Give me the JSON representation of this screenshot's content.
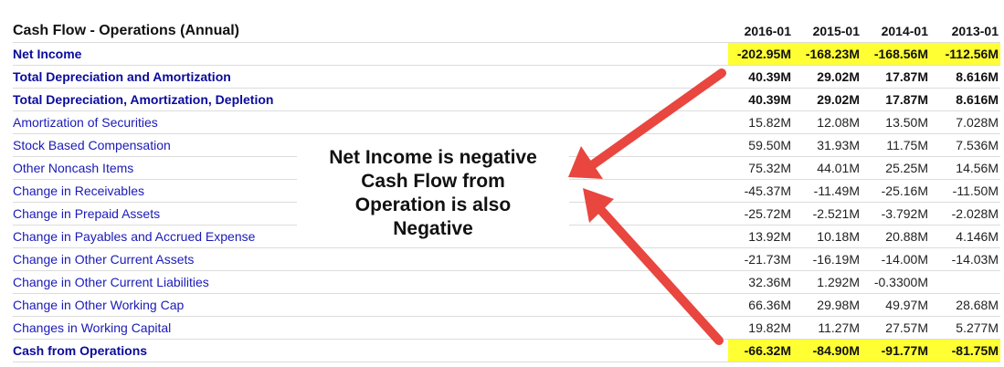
{
  "table": {
    "title": "Cash Flow - Operations (Annual)",
    "columns": [
      "2016-01",
      "2015-01",
      "2014-01",
      "2013-01"
    ],
    "rows": [
      {
        "label": "Net Income",
        "values": [
          "-202.95M",
          "-168.23M",
          "-168.56M",
          "-112.56M"
        ],
        "bold": true,
        "highlight": true
      },
      {
        "label": "Total Depreciation and Amortization",
        "values": [
          "40.39M",
          "29.02M",
          "17.87M",
          "8.616M"
        ],
        "bold": true,
        "highlight": false
      },
      {
        "label": "Total Depreciation, Amortization, Depletion",
        "values": [
          "40.39M",
          "29.02M",
          "17.87M",
          "8.616M"
        ],
        "bold": true,
        "highlight": false
      },
      {
        "label": "Amortization of Securities",
        "values": [
          "15.82M",
          "12.08M",
          "13.50M",
          "7.028M"
        ],
        "bold": false,
        "highlight": false
      },
      {
        "label": "Stock Based Compensation",
        "values": [
          "59.50M",
          "31.93M",
          "11.75M",
          "7.536M"
        ],
        "bold": false,
        "highlight": false
      },
      {
        "label": "Other Noncash Items",
        "values": [
          "75.32M",
          "44.01M",
          "25.25M",
          "14.56M"
        ],
        "bold": false,
        "highlight": false
      },
      {
        "label": "Change in Receivables",
        "values": [
          "-45.37M",
          "-11.49M",
          "-25.16M",
          "-11.50M"
        ],
        "bold": false,
        "highlight": false
      },
      {
        "label": "Change in Prepaid Assets",
        "values": [
          "-25.72M",
          "-2.521M",
          "-3.792M",
          "-2.028M"
        ],
        "bold": false,
        "highlight": false
      },
      {
        "label": "Change in Payables and Accrued Expense",
        "values": [
          "13.92M",
          "10.18M",
          "20.88M",
          "4.146M"
        ],
        "bold": false,
        "highlight": false
      },
      {
        "label": "Change in Other Current Assets",
        "values": [
          "-21.73M",
          "-16.19M",
          "-14.00M",
          "-14.03M"
        ],
        "bold": false,
        "highlight": false
      },
      {
        "label": "Change in Other Current Liabilities",
        "values": [
          "32.36M",
          "1.292M",
          "-0.3300M",
          ""
        ],
        "bold": false,
        "highlight": false
      },
      {
        "label": "Change in Other Working Cap",
        "values": [
          "66.36M",
          "29.98M",
          "49.97M",
          "28.68M"
        ],
        "bold": false,
        "highlight": false
      },
      {
        "label": "Changes in Working Capital",
        "values": [
          "19.82M",
          "11.27M",
          "27.57M",
          "5.277M"
        ],
        "bold": false,
        "highlight": false
      },
      {
        "label": "Cash from Operations",
        "values": [
          "-66.32M",
          "-84.90M",
          "-91.77M",
          "-81.75M"
        ],
        "bold": true,
        "highlight": true
      }
    ]
  },
  "annotation": {
    "lines": [
      "Net Income is negative",
      "Cash Flow from",
      "Operation is also",
      "Negative"
    ]
  },
  "colors": {
    "link_blue": "#1a1ab8",
    "highlight_yellow": "#ffff33",
    "arrow_red": "#e8463f"
  }
}
